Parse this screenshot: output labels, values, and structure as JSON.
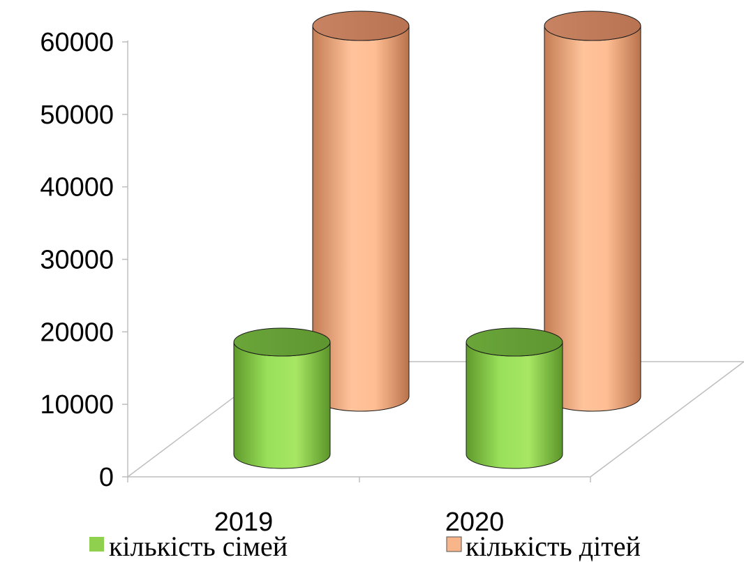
{
  "chart_data": {
    "type": "bar",
    "style": "3d-cylinder",
    "categories": [
      "2019",
      "2020"
    ],
    "series": [
      {
        "name": "кількість сімей",
        "values": [
          16500,
          16500
        ],
        "color": "#8fd14f"
      },
      {
        "name": "кількість дітей",
        "values": [
          62000,
          62000
        ],
        "color": "#f8b58a"
      }
    ],
    "ylim": [
      0,
      60000
    ],
    "yticks": [
      "60000",
      "50000",
      "40000",
      "30000",
      "20000",
      "10000",
      "0"
    ],
    "legend": "bottom",
    "grid": false
  }
}
